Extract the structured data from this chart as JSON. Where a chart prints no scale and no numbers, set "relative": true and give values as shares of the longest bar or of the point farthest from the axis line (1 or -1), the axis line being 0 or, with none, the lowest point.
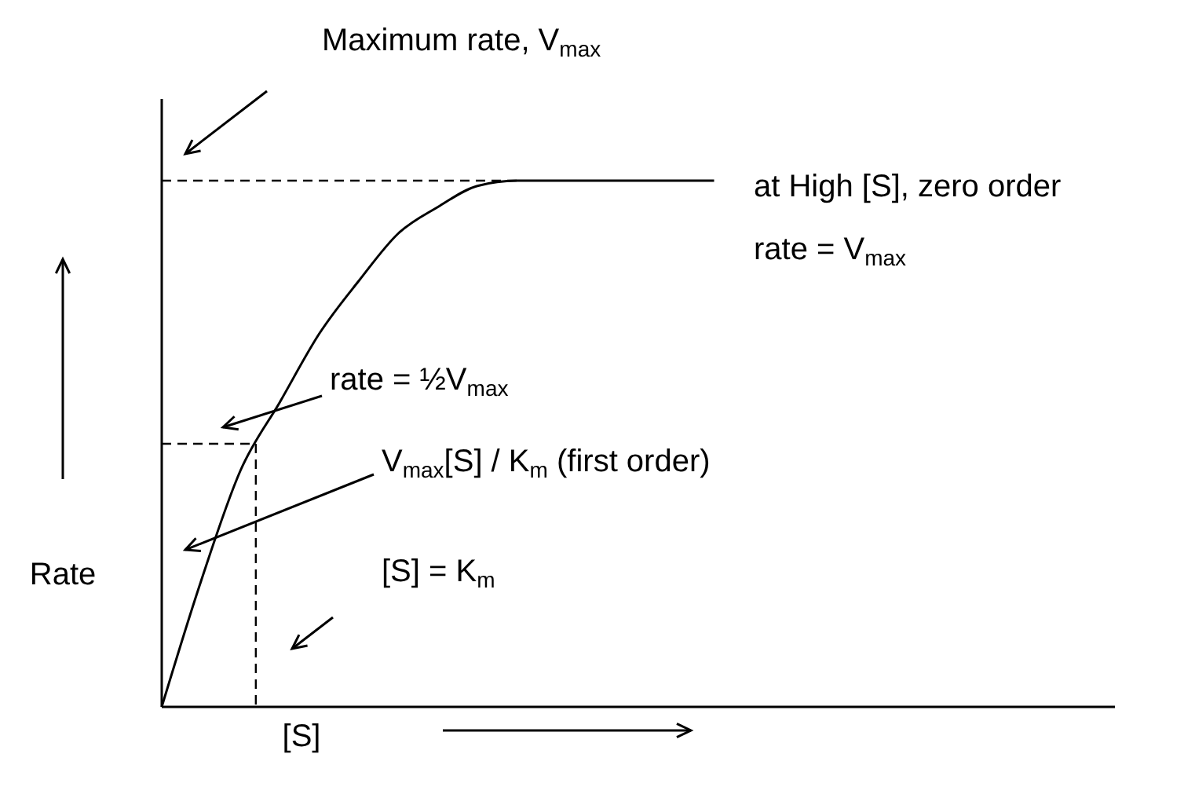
{
  "chart_data": {
    "type": "line",
    "relative": true,
    "xlabel": "[S]",
    "ylabel": "Rate",
    "categories": [
      null,
      null,
      null,
      null,
      null,
      null,
      null,
      null,
      null,
      null,
      null,
      null,
      null,
      null,
      null,
      null,
      null,
      null,
      null,
      null,
      null,
      null,
      null,
      null,
      null
    ],
    "series": [
      {
        "color": "#000000",
        "values": [
          0,
          0.24,
          0.45,
          0.58,
          0.71,
          0.81,
          0.9,
          0.95,
          0.99,
          1,
          1,
          1,
          1,
          1,
          1,
          null,
          null,
          null,
          null,
          null,
          null,
          null,
          null,
          null,
          null
        ]
      }
    ],
    "marker": "none",
    "line_style": "solid",
    "ref_lines": [
      {
        "axis": "y",
        "value": 1,
        "color": "#000000",
        "line_style": "dashed"
      },
      {
        "axis": "y",
        "value": 0.5,
        "color": "#000000",
        "line_style": "dashed"
      }
    ],
    "annotations": [
      "Maximum rate, V$_{max}$",
      "at High [S], zero order",
      "rate = V$_{max}$",
      "rate = ½V$_{max}$",
      "V$_{max}$[S] / K$_{m}$ (first order)",
      "[S] = K$_{m}$"
    ]
  }
}
